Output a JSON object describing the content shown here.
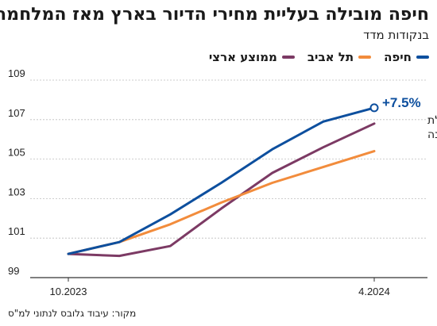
{
  "title": "חיפה מובילה בעליית מחירי הדיור בארץ מאז המלחמה",
  "subtitle": "בנקודות מדד",
  "source": "מקור: עיבוד גלובס לנתוני למ\"ס",
  "chart_data": {
    "type": "line",
    "x": [
      "10.2023",
      "11.2023",
      "12.2023",
      "1.2024",
      "2.2024",
      "3.2024",
      "4.2024"
    ],
    "x_tick_labels": [
      "10.2023",
      "4.2024"
    ],
    "ylim": [
      99,
      109
    ],
    "yticks": [
      99,
      101,
      103,
      105,
      107,
      109
    ],
    "grid": true,
    "legend_position": "top-right",
    "series": [
      {
        "name": "חיפה",
        "color": "#0d4f9e",
        "values": [
          100.2,
          100.8,
          102.2,
          103.8,
          105.5,
          106.9,
          107.6
        ]
      },
      {
        "name": "תל אביב",
        "color": "#f28c3c",
        "values": [
          100.2,
          100.8,
          101.7,
          102.8,
          103.8,
          104.6,
          105.4
        ]
      },
      {
        "name": "ממוצע ארצי",
        "color": "#7c3a64",
        "values": [
          100.2,
          100.1,
          100.6,
          102.5,
          104.3,
          105.6,
          106.8
        ]
      }
    ],
    "annotation": {
      "value": "+7.5%",
      "line1": "מתחילת",
      "line2": "השנה"
    }
  }
}
